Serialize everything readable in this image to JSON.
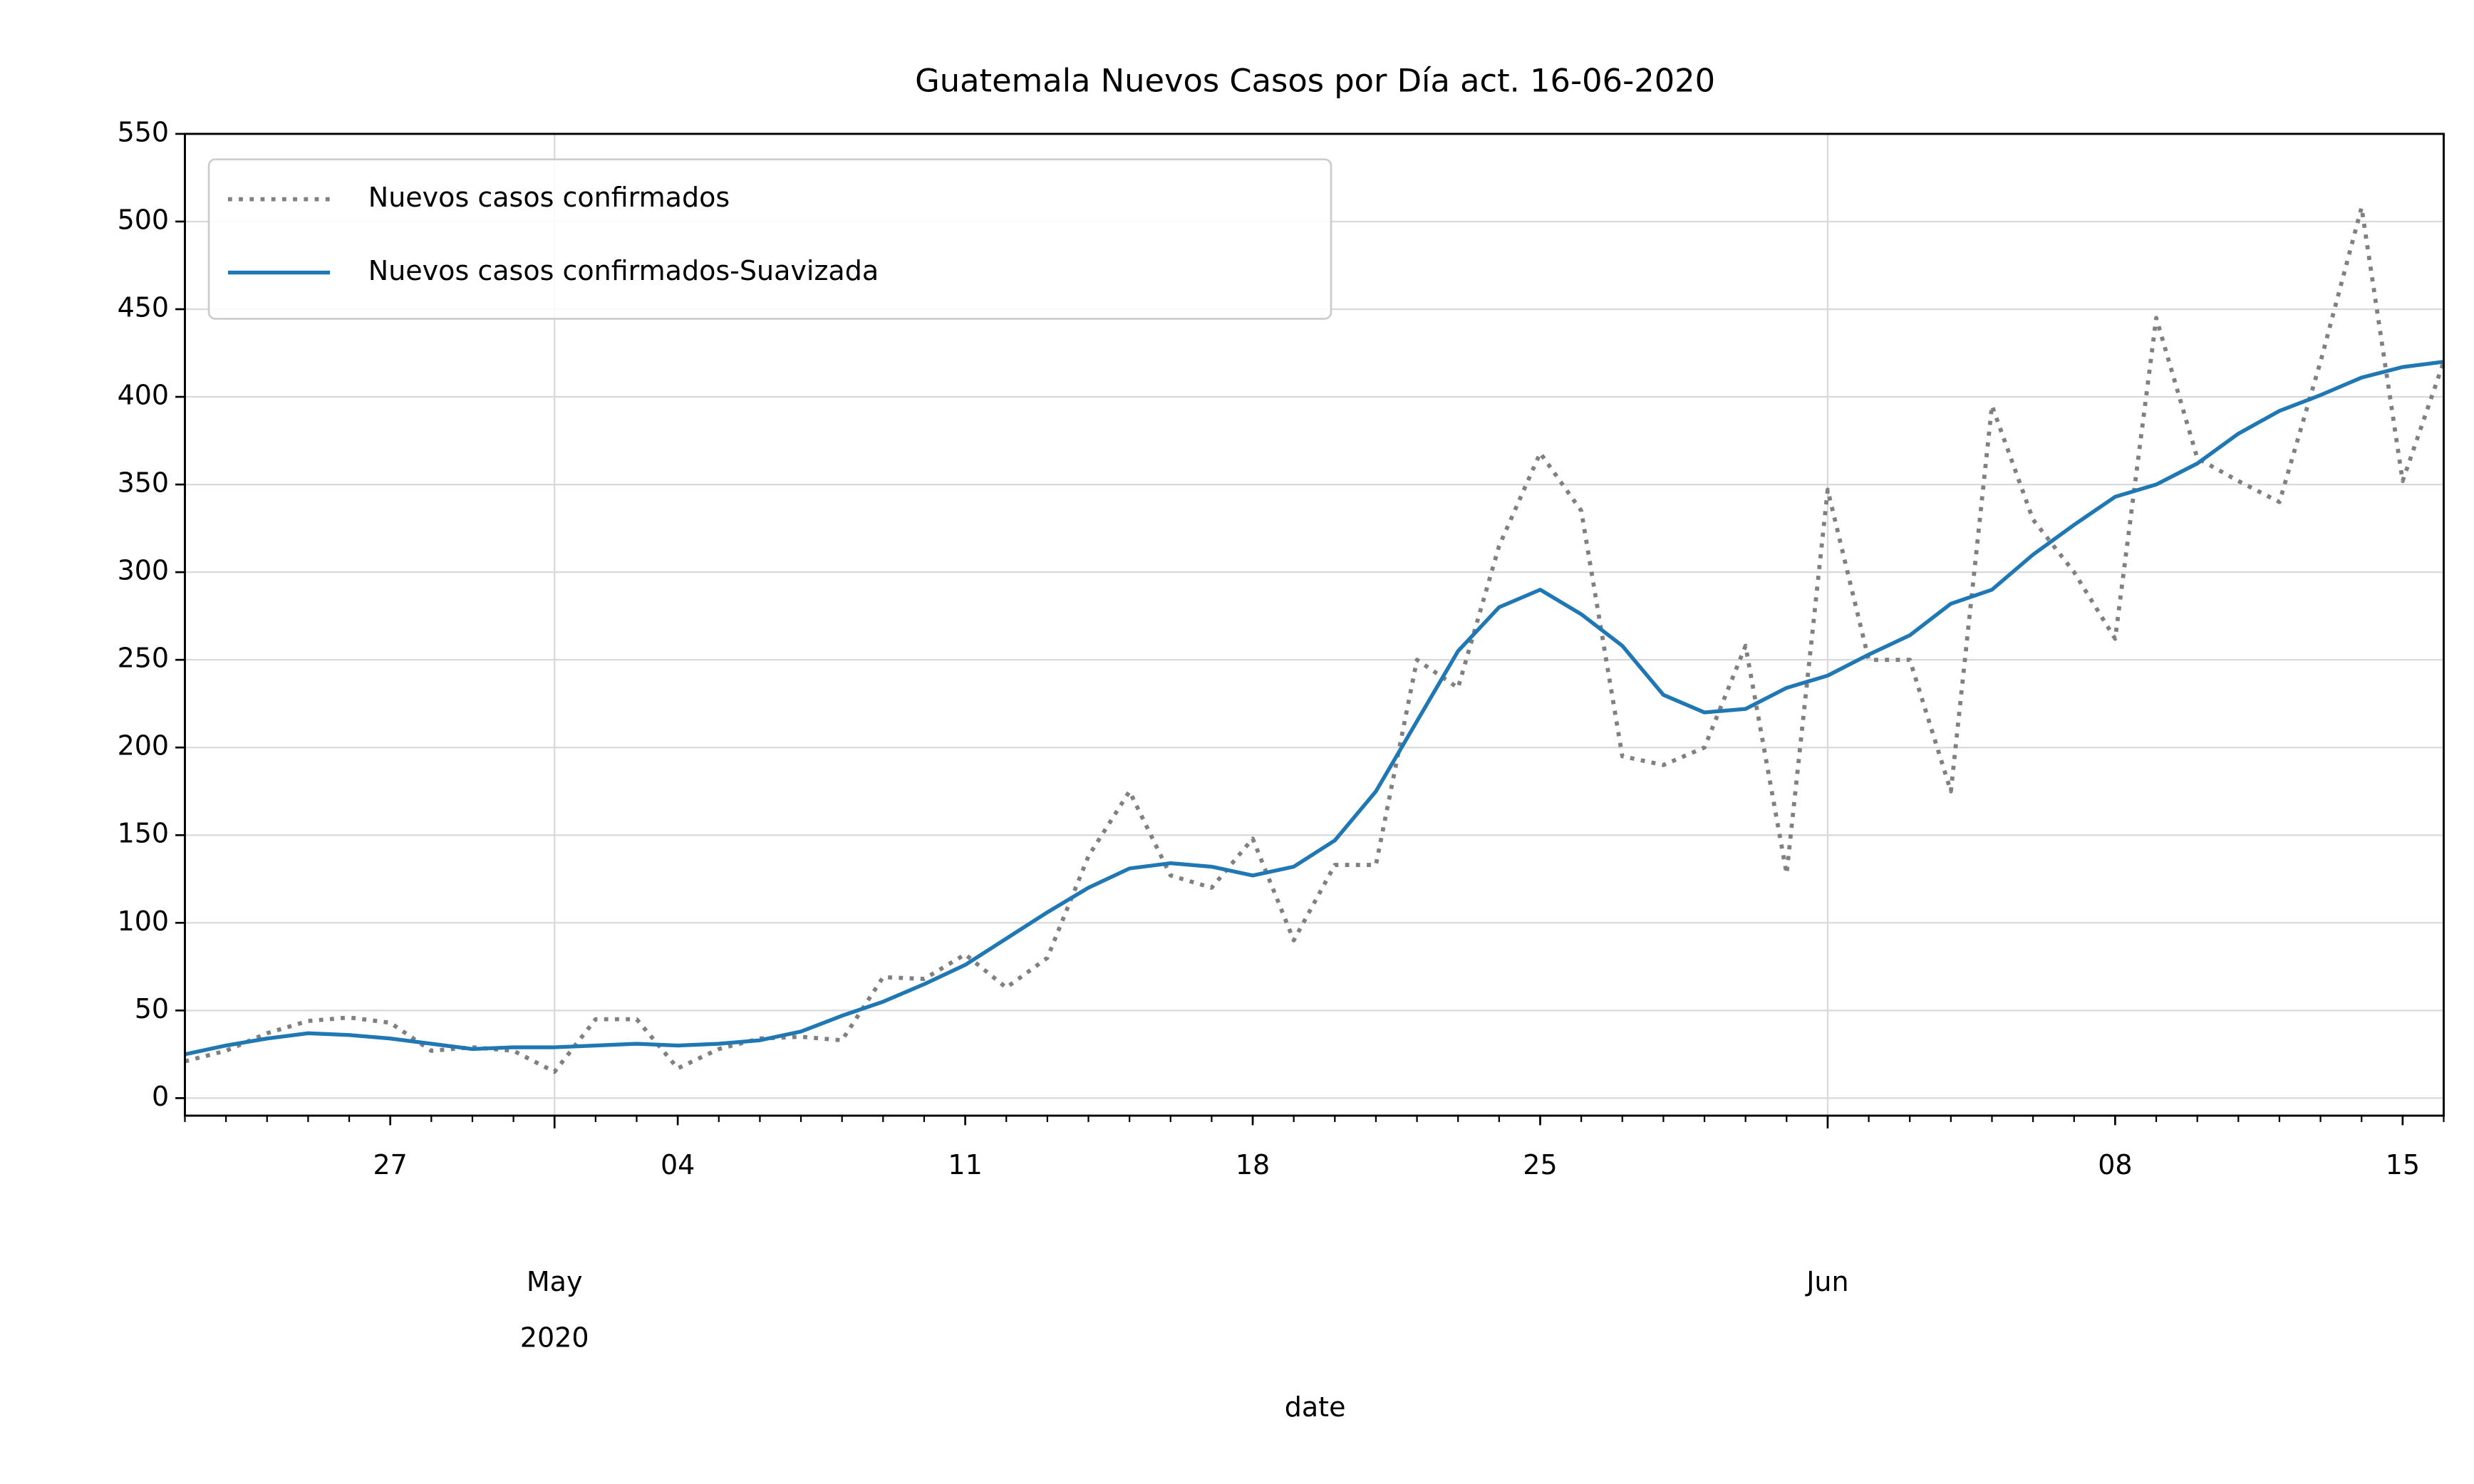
{
  "chart_data": {
    "type": "line",
    "title": "Guatemala Nuevos Casos por Día act. 16-06-2020",
    "x_label": "date",
    "x": [
      "2020-04-22",
      "2020-04-23",
      "2020-04-24",
      "2020-04-25",
      "2020-04-26",
      "2020-04-27",
      "2020-04-28",
      "2020-04-29",
      "2020-04-30",
      "2020-05-01",
      "2020-05-02",
      "2020-05-03",
      "2020-05-04",
      "2020-05-05",
      "2020-05-06",
      "2020-05-07",
      "2020-05-08",
      "2020-05-09",
      "2020-05-10",
      "2020-05-11",
      "2020-05-12",
      "2020-05-13",
      "2020-05-14",
      "2020-05-15",
      "2020-05-16",
      "2020-05-17",
      "2020-05-18",
      "2020-05-19",
      "2020-05-20",
      "2020-05-21",
      "2020-05-22",
      "2020-05-23",
      "2020-05-24",
      "2020-05-25",
      "2020-05-26",
      "2020-05-27",
      "2020-05-28",
      "2020-05-29",
      "2020-05-30",
      "2020-05-31",
      "2020-06-01",
      "2020-06-02",
      "2020-06-03",
      "2020-06-04",
      "2020-06-05",
      "2020-06-06",
      "2020-06-07",
      "2020-06-08",
      "2020-06-09",
      "2020-06-10",
      "2020-06-11",
      "2020-06-12",
      "2020-06-13",
      "2020-06-14",
      "2020-06-15",
      "2020-06-16"
    ],
    "series": [
      {
        "name": "Nuevos casos confirmados",
        "color": "#808080",
        "style": "dotted",
        "values": [
          21,
          27,
          37,
          44,
          46,
          43,
          27,
          29,
          27,
          15,
          45,
          45,
          17,
          28,
          34,
          35,
          33,
          69,
          68,
          82,
          63,
          80,
          138,
          175,
          127,
          120,
          148,
          90,
          133,
          133,
          250,
          234,
          315,
          368,
          335,
          195,
          190,
          200,
          258,
          128,
          347,
          250,
          250,
          175,
          395,
          330,
          300,
          262,
          445,
          365,
          352,
          340,
          420,
          508,
          352,
          420
        ]
      },
      {
        "name": "Nuevos casos confirmados-Suavizada",
        "color": "#1f77b4",
        "style": "solid",
        "values": [
          25,
          30,
          34,
          37,
          36,
          34,
          31,
          28,
          29,
          29,
          30,
          31,
          30,
          31,
          33,
          38,
          47,
          55,
          65,
          76,
          91,
          106,
          120,
          131,
          134,
          132,
          127,
          132,
          147,
          175,
          215,
          255,
          280,
          290,
          276,
          258,
          230,
          220,
          222,
          234,
          241,
          253,
          264,
          282,
          290,
          310,
          327,
          343,
          350,
          362,
          379,
          392,
          401,
          411,
          417,
          420
        ]
      }
    ],
    "xlim": [
      "2020-04-22",
      "2020-06-16"
    ],
    "xticks": [
      {
        "value": "2020-05-01",
        "label": "May\n2020"
      },
      {
        "value": "2020-06-01",
        "label": "Jun"
      }
    ],
    "minor_xticks": [
      {
        "value": "2020-04-27",
        "label": "27"
      },
      {
        "value": "2020-05-04",
        "label": "04"
      },
      {
        "value": "2020-05-11",
        "label": "11"
      },
      {
        "value": "2020-05-18",
        "label": "18"
      },
      {
        "value": "2020-05-25",
        "label": "25"
      },
      {
        "value": "2020-06-08",
        "label": "08"
      },
      {
        "value": "2020-06-15",
        "label": "15"
      }
    ],
    "ylim": [
      -10,
      550
    ],
    "yticks": [
      0,
      50,
      100,
      150,
      200,
      250,
      300,
      350,
      400,
      450,
      500,
      550
    ],
    "grid": true,
    "legend": "upper left"
  }
}
